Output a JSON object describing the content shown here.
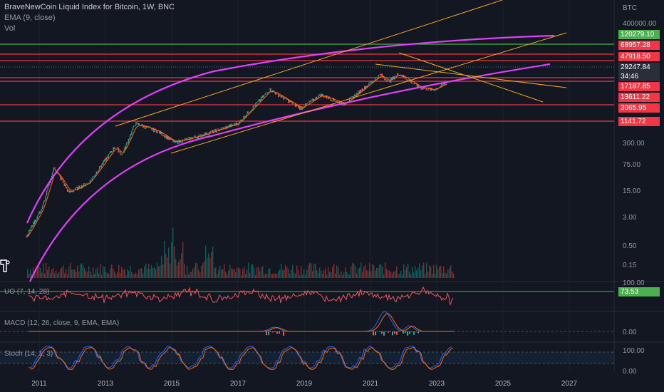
{
  "header": {
    "title": "BraveNewCoin Liquid Index for Bitcoin, 1W, BNC",
    "ema": "EMA (9, close)",
    "vol": "Vol"
  },
  "panes": {
    "uo": "UO (7, 14, 28)",
    "macd": "MACD (12, 26, close, 9, EMA, EMA)",
    "stoch": "Stoch (14, 1, 3)"
  },
  "price_axis": {
    "currency": "BTC",
    "ticks": [
      "400000.00",
      "300.00",
      "75.00",
      "15.00",
      "3.00",
      "0.50",
      "0.15"
    ],
    "level_badges": [
      {
        "label": "120279.10",
        "color": "#4caf50"
      },
      {
        "label": "68957.28",
        "color": "#f23645"
      },
      {
        "label": "47918.50",
        "color": "#f23645"
      },
      {
        "label": "29247.84",
        "color": "#2a2e39"
      },
      {
        "label": "34:46",
        "color": "#2a2e39"
      },
      {
        "label": "17187.85",
        "color": "#f23645"
      },
      {
        "label": "13611.22",
        "color": "#f23645"
      },
      {
        "label": "3065.95",
        "color": "#f23645"
      },
      {
        "label": "1141.72",
        "color": "#f23645"
      }
    ]
  },
  "uo_axis": {
    "top": "100.00",
    "value": "73.53",
    "value_color": "#4caf50"
  },
  "macd_axis": {
    "zero": "0.00"
  },
  "stoch_axis": {
    "top": "100.00",
    "bottom": "0.00"
  },
  "colors": {
    "background": "#131722",
    "candle_up": "#26a69a",
    "candle_down": "#ef5350",
    "arc": "#e040fb",
    "trend": "#f5a623",
    "level_red": "#f23645",
    "level_green": "#4caf50"
  },
  "chart_data": {
    "type": "candlestick",
    "title": "BraveNewCoin Liquid Index for Bitcoin, 1W, BNC",
    "x_ticks": [
      "2011",
      "2013",
      "2015",
      "2017",
      "2019",
      "2021",
      "2023",
      "2025",
      "2027"
    ],
    "y_scale": "log",
    "horizontal_levels": [
      120279.1,
      68957.28,
      47918.5,
      17187.85,
      13611.22,
      3065.95,
      1141.72
    ],
    "last_price": 29247.84,
    "series": [
      {
        "name": "BTC",
        "approx_points": [
          {
            "x": 2010.6,
            "y": 0.07
          },
          {
            "x": 2011.1,
            "y": 0.9
          },
          {
            "x": 2011.45,
            "y": 25
          },
          {
            "x": 2011.9,
            "y": 3
          },
          {
            "x": 2012.5,
            "y": 7
          },
          {
            "x": 2013.3,
            "y": 150
          },
          {
            "x": 2013.5,
            "y": 70
          },
          {
            "x": 2013.9,
            "y": 1000
          },
          {
            "x": 2014.6,
            "y": 500
          },
          {
            "x": 2015.1,
            "y": 200
          },
          {
            "x": 2016.0,
            "y": 400
          },
          {
            "x": 2017.0,
            "y": 1000
          },
          {
            "x": 2017.96,
            "y": 17000
          },
          {
            "x": 2018.9,
            "y": 3500
          },
          {
            "x": 2019.5,
            "y": 11000
          },
          {
            "x": 2020.2,
            "y": 5000
          },
          {
            "x": 2021.0,
            "y": 30000
          },
          {
            "x": 2021.3,
            "y": 60000
          },
          {
            "x": 2021.55,
            "y": 33000
          },
          {
            "x": 2021.85,
            "y": 65000
          },
          {
            "x": 2022.5,
            "y": 20000
          },
          {
            "x": 2022.9,
            "y": 16500
          },
          {
            "x": 2023.3,
            "y": 29247
          }
        ]
      }
    ],
    "uo_last": 73.53
  }
}
